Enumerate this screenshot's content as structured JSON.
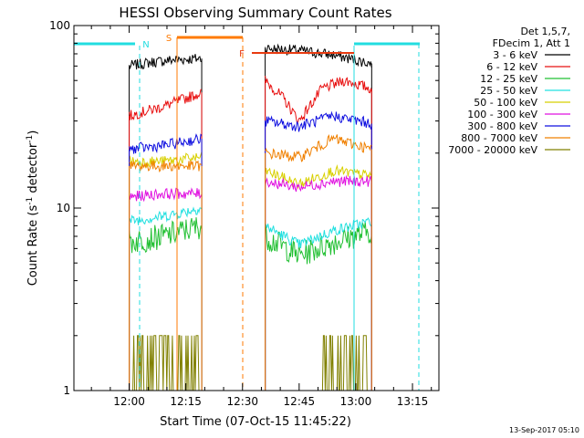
{
  "chart_data": {
    "type": "line",
    "title": "HESSI Observing Summary Count Rates",
    "xlabel": "Start Time (07-Oct-15 11:45:22)",
    "ylabel_main": "Count Rate (s",
    "ylabel_sup1": "-1",
    "ylabel_mid": " detector",
    "ylabel_sup2": "-1",
    "ylabel_end": ")",
    "yscale": "log",
    "ylim": [
      1,
      100
    ],
    "xlim": [
      "11:45:22",
      "13:22:00"
    ],
    "x_ticks": [
      "12:00",
      "12:15",
      "12:30",
      "12:45",
      "13:00",
      "13:15"
    ],
    "y_ticks": [
      "1",
      "10",
      "100"
    ],
    "timestamp": "13-Sep-2017 05:10",
    "legend": {
      "placement": "top-right",
      "header": [
        "Det 1,5,7,",
        "FDecim 1, Att 1"
      ]
    },
    "flags": [
      {
        "label": "N",
        "color": "#22dde0"
      },
      {
        "label": "S",
        "color": "#ff7a00"
      },
      {
        "label": "F",
        "color": "#e83a10"
      }
    ],
    "series": [
      {
        "name": "3 - 6 keV",
        "color": "#000000",
        "seg1": [
          [
            12.0,
            60
          ],
          [
            12.1,
            63
          ],
          [
            12.2,
            65
          ],
          [
            12.32,
            66
          ]
        ],
        "seg2": [
          [
            12.6,
            75
          ],
          [
            12.75,
            73
          ],
          [
            12.9,
            69
          ],
          [
            13.07,
            62
          ]
        ]
      },
      {
        "name": "6 - 12 keV",
        "color": "#e81010",
        "seg1": [
          [
            12.0,
            32
          ],
          [
            12.15,
            36
          ],
          [
            12.32,
            43
          ]
        ],
        "seg2": [
          [
            12.6,
            50
          ],
          [
            12.68,
            40
          ],
          [
            12.75,
            30
          ],
          [
            12.85,
            45
          ],
          [
            12.95,
            50
          ],
          [
            13.07,
            45
          ]
        ]
      },
      {
        "name": "12 - 25 keV",
        "color": "#22c033",
        "seg1": [
          [
            12.0,
            6.5
          ],
          [
            12.15,
            7
          ],
          [
            12.32,
            8
          ]
        ],
        "seg2": [
          [
            12.6,
            7
          ],
          [
            12.75,
            5.5
          ],
          [
            12.9,
            6.5
          ],
          [
            13.07,
            7.5
          ]
        ]
      },
      {
        "name": "25 - 50 keV",
        "color": "#22e0e0",
        "seg1": [
          [
            12.0,
            8.5
          ],
          [
            12.15,
            9
          ],
          [
            12.32,
            10
          ]
        ],
        "seg2": [
          [
            12.6,
            8
          ],
          [
            12.75,
            6.3
          ],
          [
            12.9,
            7.5
          ],
          [
            13.07,
            8.5
          ]
        ]
      },
      {
        "name": "50 - 100 keV",
        "color": "#d8d000",
        "seg1": [
          [
            12.0,
            18
          ],
          [
            12.15,
            18
          ],
          [
            12.32,
            19
          ]
        ],
        "seg2": [
          [
            12.6,
            16
          ],
          [
            12.75,
            13.5
          ],
          [
            12.9,
            16
          ],
          [
            13.07,
            15
          ]
        ]
      },
      {
        "name": "100 - 300 keV",
        "color": "#e010e0",
        "seg1": [
          [
            12.0,
            11.5
          ],
          [
            12.15,
            12
          ],
          [
            12.32,
            12
          ]
        ],
        "seg2": [
          [
            12.6,
            14
          ],
          [
            12.75,
            13
          ],
          [
            12.9,
            14
          ],
          [
            13.07,
            14
          ]
        ]
      },
      {
        "name": "300 - 800 keV",
        "color": "#1010e0",
        "seg1": [
          [
            12.0,
            21
          ],
          [
            12.15,
            22
          ],
          [
            12.32,
            24
          ]
        ],
        "seg2": [
          [
            12.6,
            30
          ],
          [
            12.75,
            28
          ],
          [
            12.9,
            32
          ],
          [
            13.07,
            29
          ]
        ]
      },
      {
        "name": "800 - 7000 keV",
        "color": "#f08000",
        "seg1": [
          [
            12.0,
            17
          ],
          [
            12.15,
            17
          ],
          [
            12.32,
            17
          ]
        ],
        "seg2": [
          [
            12.6,
            20
          ],
          [
            12.75,
            19
          ],
          [
            12.9,
            24
          ],
          [
            13.07,
            21
          ]
        ]
      },
      {
        "name": "7000 - 20000 keV",
        "color": "#808000",
        "seg1": [
          [
            12.0,
            1
          ],
          [
            12.32,
            1
          ]
        ],
        "seg2": [
          [
            12.6,
            1
          ],
          [
            13.07,
            1
          ]
        ]
      }
    ]
  }
}
